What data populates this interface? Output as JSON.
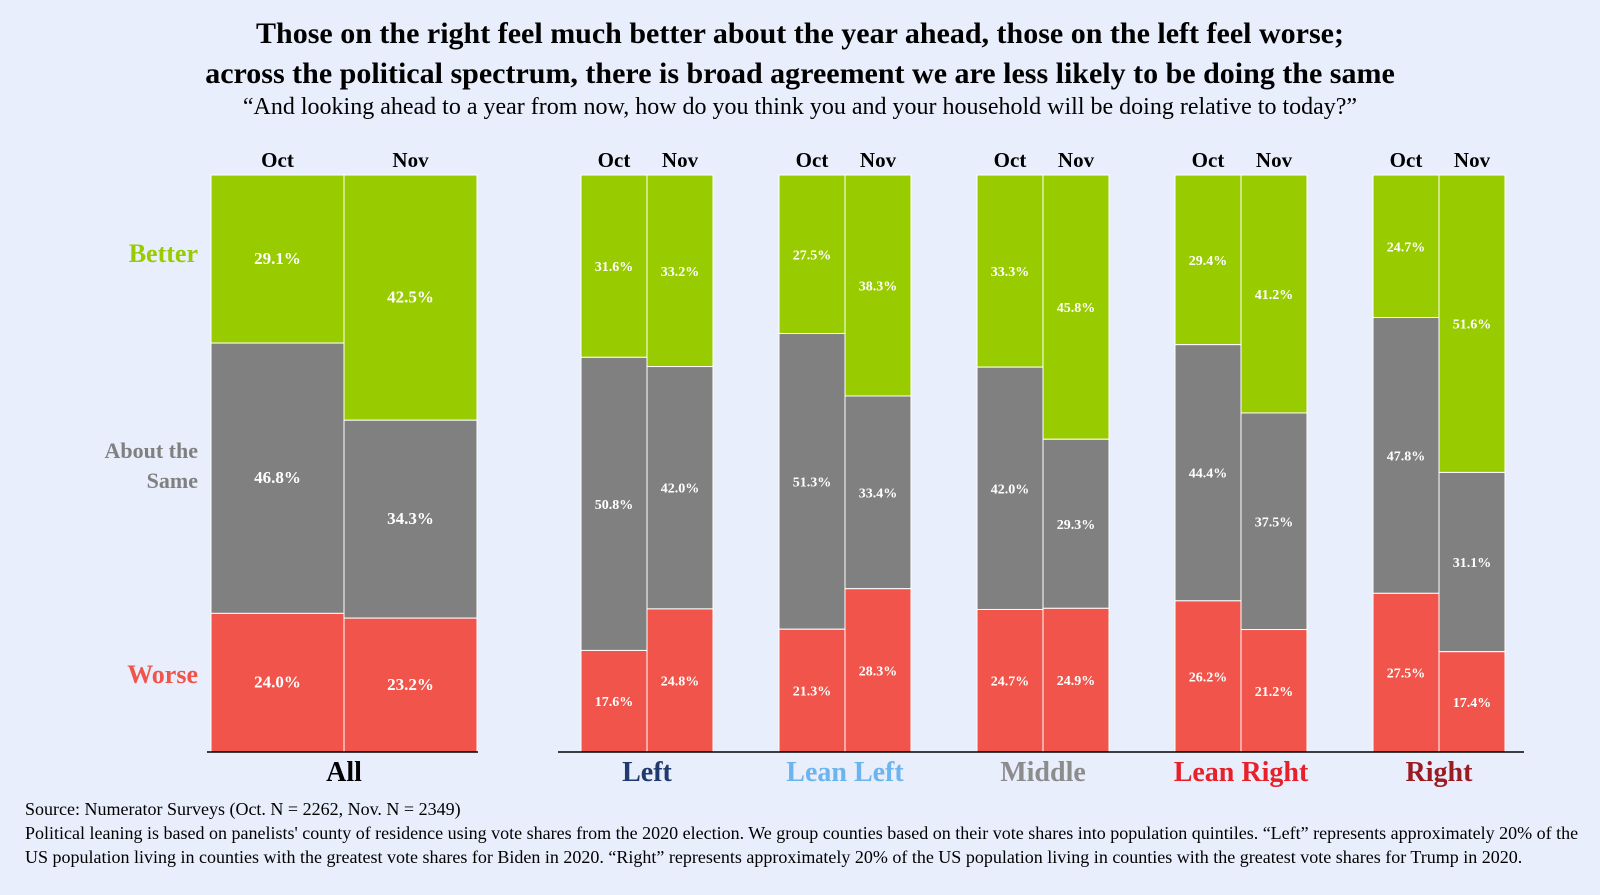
{
  "title_line1": "Those on the right feel much better about the year ahead, those on the left feel worse;",
  "title_line2": "across the political spectrum, there is broad agreement we are less likely to be doing the same",
  "subtitle": "“And looking ahead to a year from now, how do you think you and your household will be doing relative to today?”",
  "source": "Source: Numerator Surveys  (Oct. N = 2262, Nov. N = 2349)",
  "note": "Political leaning is based on panelists' county of residence using vote shares from the 2020 election. We group counties based on their vote shares into population quintiles. “Left” represents approximately 20% of the US population living in counties with the greatest vote shares for Biden in 2020. “Right” represents approximately 20% of the US population living in counties with the greatest vote shares for Trump in 2020.",
  "colors": {
    "better": "#99cc00",
    "same": "#808080",
    "worse": "#f0544a",
    "background": "#e8eefb"
  },
  "chart_data": {
    "type": "bar",
    "stacked": true,
    "normalized": true,
    "row_labels": [
      {
        "key": "better",
        "lines": [
          "Better"
        ],
        "color": "#99cc00"
      },
      {
        "key": "same",
        "lines": [
          "About the",
          "Same"
        ],
        "color": "#808080"
      },
      {
        "key": "worse",
        "lines": [
          "Worse"
        ],
        "color": "#f0544a"
      }
    ],
    "groups": [
      {
        "name": "All",
        "color": "#000000",
        "bars": [
          {
            "label": "Oct",
            "better": 29.1,
            "same": 46.8,
            "worse": 24.0
          },
          {
            "label": "Nov",
            "better": 42.5,
            "same": 34.3,
            "worse": 23.2
          }
        ]
      },
      {
        "name": "Left",
        "color": "#1f3a6e",
        "bars": [
          {
            "label": "Oct",
            "better": 31.6,
            "same": 50.8,
            "worse": 17.6
          },
          {
            "label": "Nov",
            "better": 33.2,
            "same": 42.0,
            "worse": 24.8
          }
        ]
      },
      {
        "name": "Lean Left",
        "color": "#6cb4ee",
        "bars": [
          {
            "label": "Oct",
            "better": 27.5,
            "same": 51.3,
            "worse": 21.3
          },
          {
            "label": "Nov",
            "better": 38.3,
            "same": 33.4,
            "worse": 28.3
          }
        ]
      },
      {
        "name": "Middle",
        "color": "#8c8c8c",
        "bars": [
          {
            "label": "Oct",
            "better": 33.3,
            "same": 42.0,
            "worse": 24.7
          },
          {
            "label": "Nov",
            "better": 45.8,
            "same": 29.3,
            "worse": 24.9
          }
        ]
      },
      {
        "name": "Lean Right",
        "color": "#e8202a",
        "bars": [
          {
            "label": "Oct",
            "better": 29.4,
            "same": 44.4,
            "worse": 26.2
          },
          {
            "label": "Nov",
            "better": 41.2,
            "same": 37.5,
            "worse": 21.2
          }
        ]
      },
      {
        "name": "Right",
        "color": "#9b1b22",
        "bars": [
          {
            "label": "Oct",
            "better": 24.7,
            "same": 47.8,
            "worse": 27.5
          },
          {
            "label": "Nov",
            "better": 51.6,
            "same": 31.1,
            "worse": 17.4
          }
        ]
      }
    ]
  }
}
